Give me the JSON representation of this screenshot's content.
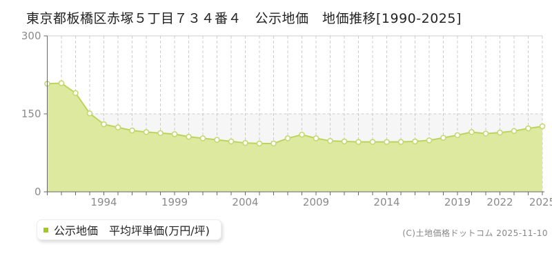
{
  "header": {
    "title": "東京都板橋区赤塚５丁目７３４番４　公示地価　地価推移[1990-2025]"
  },
  "legend": {
    "label": "公示地価　平均坪単価(万円/坪)",
    "bullet_color": "#a3c820"
  },
  "footer": {
    "copyright": "(C)土地価格ドットコム 2025-11-10"
  },
  "chart_data": {
    "type": "area",
    "title": "東京都板橋区赤塚５丁目７３４番４ 公示地価 地価推移[1990-2025]",
    "x": [
      1990,
      1991,
      1992,
      1993,
      1994,
      1995,
      1996,
      1997,
      1998,
      1999,
      2000,
      2001,
      2002,
      2003,
      2004,
      2005,
      2006,
      2007,
      2008,
      2009,
      2010,
      2011,
      2012,
      2013,
      2014,
      2015,
      2016,
      2017,
      2018,
      2019,
      2020,
      2021,
      2022,
      2023,
      2024,
      2025
    ],
    "series": [
      {
        "name": "公示地価 平均坪単価(万円/坪)",
        "values": [
          208,
          209,
          190,
          151,
          130,
          124,
          118,
          115,
          113,
          111,
          106,
          103,
          100,
          97,
          94,
          93,
          93,
          103,
          110,
          103,
          98,
          97,
          96,
          96,
          96,
          96,
          97,
          99,
          104,
          109,
          115,
          112,
          114,
          117,
          122,
          126
        ]
      }
    ],
    "xlabel": "",
    "ylabel": "",
    "ylim": [
      0,
      300
    ],
    "yticks": [
      0,
      150,
      300
    ],
    "xtick_labels": [
      1994,
      1999,
      2004,
      2009,
      2014,
      2019,
      2022,
      2025
    ],
    "grid": true,
    "legend_position": "bottom-left",
    "colors": {
      "area_fill": "#dde99f",
      "line": "#bcd45e",
      "marker_fill": "#ffffff",
      "marker_stroke": "#c3d96d",
      "band_fill": "#f6f6f6",
      "grid": "#cccccc",
      "axis": "#666666",
      "tick_label": "#8a8a8a"
    }
  }
}
